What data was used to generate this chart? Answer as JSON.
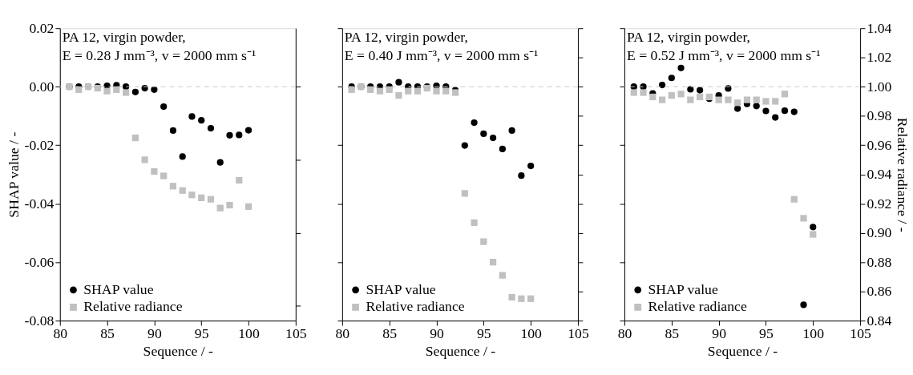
{
  "chart_data": [
    {
      "type": "scatter",
      "xlabel": "Sequence / -",
      "ylabel": "SHAP value / -",
      "annotations": [
        "PA 12, virgin powder,",
        "E = 0.28 J mm⁻³, v = 2000 mm s⁻¹"
      ],
      "legend": "bottom left",
      "x": [
        81,
        82,
        83,
        84,
        85,
        86,
        87,
        88,
        89,
        90,
        91,
        92,
        93,
        94,
        95,
        96,
        97,
        98,
        99,
        100
      ],
      "xlim": [
        80,
        105
      ],
      "xticks": [
        80,
        85,
        90,
        95,
        100,
        105
      ],
      "ylim": [
        -0.08,
        0.02
      ],
      "yticks": [
        {
          "value": -0.08,
          "label": "-0.08"
        },
        {
          "value": -0.06,
          "label": "-0.06"
        },
        {
          "value": -0.04,
          "label": "-0.04"
        },
        {
          "value": -0.02,
          "label": "-0.02"
        },
        {
          "value": 0,
          "label": "0.00"
        },
        {
          "value": 0.02,
          "label": "0.02"
        }
      ],
      "y2lim": [
        0.84,
        1.04
      ],
      "ref_lines": [
        {
          "axis": "y",
          "value": 0,
          "color": "#c8c8c8",
          "line_style": "dashed"
        }
      ],
      "series": [
        {
          "name": "SHAP value",
          "color": "#000000",
          "marker": "circle",
          "values": [
            0.0,
            0.0,
            0.0,
            0.0,
            0.0003,
            0.0005,
            0.0,
            -0.0018,
            -0.0005,
            -0.001,
            -0.0068,
            -0.015,
            -0.0239,
            -0.0102,
            -0.0115,
            -0.0142,
            -0.0259,
            -0.0166,
            -0.0165,
            -0.0149
          ]
        },
        {
          "name": "Relative radiance",
          "color": "#c0c0c0",
          "marker": "square",
          "axis": "y2",
          "values": [
            1.0,
            0.998,
            1.0,
            0.999,
            0.997,
            0.998,
            0.996,
            0.965,
            0.95,
            0.942,
            0.939,
            0.932,
            0.929,
            0.926,
            0.924,
            0.923,
            0.917,
            0.919,
            0.936,
            0.918
          ]
        }
      ]
    },
    {
      "type": "scatter",
      "xlabel": "Sequence / -",
      "annotations": [
        "PA 12, virgin powder,",
        "E = 0.40 J mm⁻³, v = 2000 mm s⁻¹"
      ],
      "legend": "bottom left",
      "x": [
        81,
        82,
        83,
        84,
        85,
        86,
        87,
        88,
        89,
        90,
        91,
        92,
        93,
        94,
        95,
        96,
        97,
        98,
        99,
        100
      ],
      "xlim": [
        80,
        105
      ],
      "xticks": [
        80,
        85,
        90,
        95,
        100,
        105
      ],
      "ylim": [
        -0.08,
        0.02
      ],
      "yticks": [
        -0.08,
        -0.06,
        -0.04,
        -0.02,
        0,
        0.02
      ],
      "y2lim": [
        0.84,
        1.04
      ],
      "y2ticks": [
        0.84,
        0.86,
        0.88,
        0.9,
        0.92,
        0.94,
        0.96,
        0.98,
        1.0,
        1.02,
        1.04
      ],
      "tick_labels": "x",
      "ref_lines": [
        {
          "axis": "y",
          "value": 0,
          "color": "#c8c8c8",
          "line_style": "dashed"
        }
      ],
      "series": [
        {
          "name": "SHAP value",
          "color": "#000000",
          "marker": "circle",
          "values": [
            0.0,
            0.0,
            0.0,
            0.0,
            0.0,
            0.0015,
            0.0,
            0.0,
            0.0,
            0.0003,
            0.0,
            -0.0012,
            -0.0201,
            -0.0123,
            -0.0161,
            -0.0175,
            -0.0213,
            -0.015,
            -0.0304,
            -0.0271
          ]
        },
        {
          "name": "Relative radiance",
          "color": "#c0c0c0",
          "marker": "square",
          "axis": "y2",
          "values": [
            0.998,
            1.0,
            0.998,
            0.997,
            0.998,
            0.994,
            0.997,
            0.997,
            0.999,
            0.997,
            0.997,
            0.996,
            0.927,
            0.907,
            0.894,
            0.88,
            0.871,
            0.856,
            0.855,
            0.855
          ]
        }
      ]
    },
    {
      "type": "scatter",
      "xlabel": "Sequence / -",
      "y2label": "Relative radiance / -",
      "annotations": [
        "PA 12, virgin powder,",
        "E = 0.52 J mm⁻³, v = 2000 mm s⁻¹"
      ],
      "legend": "bottom left",
      "x": [
        81,
        82,
        83,
        84,
        85,
        86,
        87,
        88,
        89,
        90,
        91,
        92,
        93,
        94,
        95,
        96,
        97,
        98,
        99,
        100
      ],
      "xlim": [
        80,
        105
      ],
      "xticks": [
        80,
        85,
        90,
        95,
        100,
        105
      ],
      "ylim": [
        -0.08,
        0.02
      ],
      "y2lim": [
        0.84,
        1.04
      ],
      "y2ticks": [
        {
          "value": 0.84,
          "label": "0.84"
        },
        {
          "value": 0.86,
          "label": "0.86"
        },
        {
          "value": 0.88,
          "label": "0.88"
        },
        {
          "value": 0.9,
          "label": "0.90"
        },
        {
          "value": 0.92,
          "label": "0.92"
        },
        {
          "value": 0.94,
          "label": "0.94"
        },
        {
          "value": 0.96,
          "label": "0.96"
        },
        {
          "value": 0.98,
          "label": "0.98"
        },
        {
          "value": 1.0,
          "label": "1.00"
        },
        {
          "value": 1.02,
          "label": "1.02"
        },
        {
          "value": 1.04,
          "label": "1.04"
        }
      ],
      "ref_lines": [
        {
          "axis": "y",
          "value": 0,
          "color": "#c8c8c8",
          "line_style": "dashed"
        }
      ],
      "series": [
        {
          "name": "SHAP value",
          "color": "#000000",
          "marker": "circle",
          "values": [
            0.0,
            0.0,
            -0.0023,
            0.0006,
            0.003,
            0.0064,
            -0.0009,
            -0.0012,
            -0.0041,
            -0.003,
            -0.0006,
            -0.0075,
            -0.0059,
            -0.0066,
            -0.0083,
            -0.0105,
            -0.0082,
            -0.0086,
            -0.0746,
            -0.048
          ]
        },
        {
          "name": "Relative radiance",
          "color": "#c0c0c0",
          "marker": "square",
          "axis": "y2",
          "values": [
            0.996,
            0.996,
            0.993,
            0.991,
            0.994,
            0.995,
            0.991,
            0.993,
            0.993,
            0.991,
            0.991,
            0.989,
            0.991,
            0.991,
            0.99,
            0.99,
            0.995,
            0.923,
            0.91,
            0.899
          ]
        }
      ]
    }
  ]
}
